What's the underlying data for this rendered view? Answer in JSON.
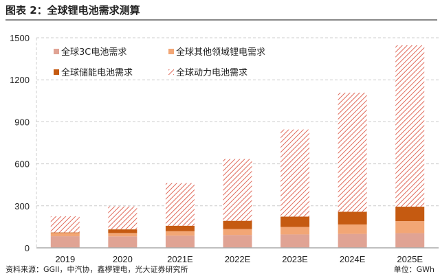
{
  "title": "图表 2：全球锂电池需求测算",
  "source": "资料来源：GGII，中汽协，鑫椤锂电，光大证券研究所",
  "unit": "单位：GWh",
  "chart_data": {
    "type": "bar",
    "stacked": true,
    "categories": [
      "2019",
      "2020",
      "2021E",
      "2022E",
      "2023E",
      "2024E",
      "2025E"
    ],
    "series": [
      {
        "name": "全球3C电池需求",
        "color": "#e0a394",
        "values": [
          83,
          82,
          87,
          92,
          96,
          100,
          105
        ]
      },
      {
        "name": "全球其他领域锂电需求",
        "color": "#f2a675",
        "values": [
          23,
          24,
          32,
          42,
          53,
          67,
          86
        ]
      },
      {
        "name": "全球储能电池需求",
        "color": "#c55a11",
        "values": [
          4,
          26,
          39,
          59,
          74,
          91,
          103
        ]
      },
      {
        "name": "全球动力电池需求",
        "color": "#e06a5a",
        "pattern": "hatch",
        "values": [
          115,
          164,
          304,
          441,
          622,
          850,
          1152
        ]
      }
    ],
    "yticks": [
      0,
      300,
      600,
      900,
      1200,
      1500
    ],
    "ylim": [
      0,
      1500
    ],
    "grid": true,
    "legend": "top-left"
  }
}
